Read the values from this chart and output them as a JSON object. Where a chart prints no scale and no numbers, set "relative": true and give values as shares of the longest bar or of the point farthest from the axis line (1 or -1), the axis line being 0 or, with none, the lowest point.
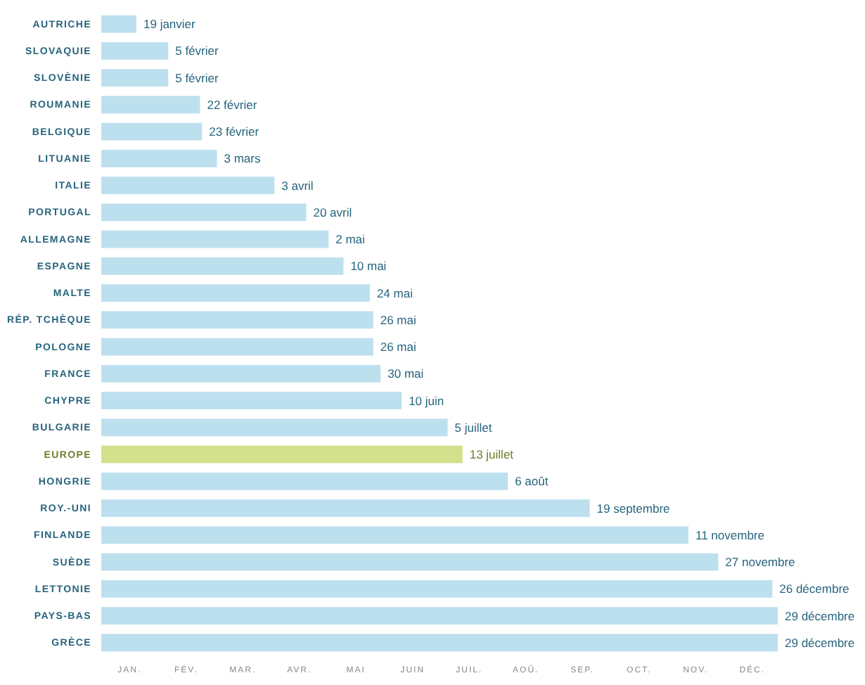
{
  "chart_data": {
    "type": "bar",
    "orientation": "horizontal",
    "relative": true,
    "categories": [
      "AUTRICHE",
      "SLOVAQUIE",
      "SLOVÈNIE",
      "ROUMANIE",
      "BELGIQUE",
      "LITUANIE",
      "ITALIE",
      "PORTUGAL",
      "ALLEMAGNE",
      "ESPAGNE",
      "MALTE",
      "RÉP. TCHÈQUE",
      "POLOGNE",
      "FRANCE",
      "CHYPRE",
      "BULGARIE",
      "EUROPE",
      "HONGRIE",
      "ROY.-UNI",
      "FINLANDE",
      "SUÈDE",
      "LETTONIE",
      "PAYS-BAS",
      "GRÈCE"
    ],
    "values": [
      0.052,
      0.099,
      0.099,
      0.146,
      0.149,
      0.171,
      0.256,
      0.303,
      0.336,
      0.358,
      0.397,
      0.402,
      0.402,
      0.413,
      0.444,
      0.512,
      0.534,
      0.601,
      0.722,
      0.868,
      0.912,
      0.992,
      1,
      1
    ],
    "colors": [
      "#bde0ee",
      "#bde0ee",
      "#bde0ee",
      "#bde0ee",
      "#bde0ee",
      "#bde0ee",
      "#bde0ee",
      "#bde0ee",
      "#bde0ee",
      "#bde0ee",
      "#bde0ee",
      "#bde0ee",
      "#bde0ee",
      "#bde0ee",
      "#bde0ee",
      "#bde0ee",
      "#d3e08c",
      "#bde0ee",
      "#bde0ee",
      "#bde0ee",
      "#bde0ee",
      "#bde0ee",
      "#bde0ee",
      "#bde0ee"
    ],
    "annotations": [
      "19 janvier",
      "5 février",
      "5 février",
      "22 février",
      "23 février",
      "3 mars",
      "3 avril",
      "20 avril",
      "2 mai",
      "10 mai",
      "24 mai",
      "26 mai",
      "26 mai",
      "30 mai",
      "10 juin",
      "5 juillet",
      "13 juillet",
      "6 août",
      "19 septembre",
      "11 novembre",
      "27 novembre",
      "26 décembre",
      "29 décembre",
      "29 décembre",
      "JAN.",
      "FÉV.",
      "MAR.",
      "AVR.",
      "MAI",
      "JUIN",
      "JUIL.",
      "AOÛ.",
      "SEP.",
      "OCT.",
      "NOV.",
      "DÉC."
    ]
  }
}
